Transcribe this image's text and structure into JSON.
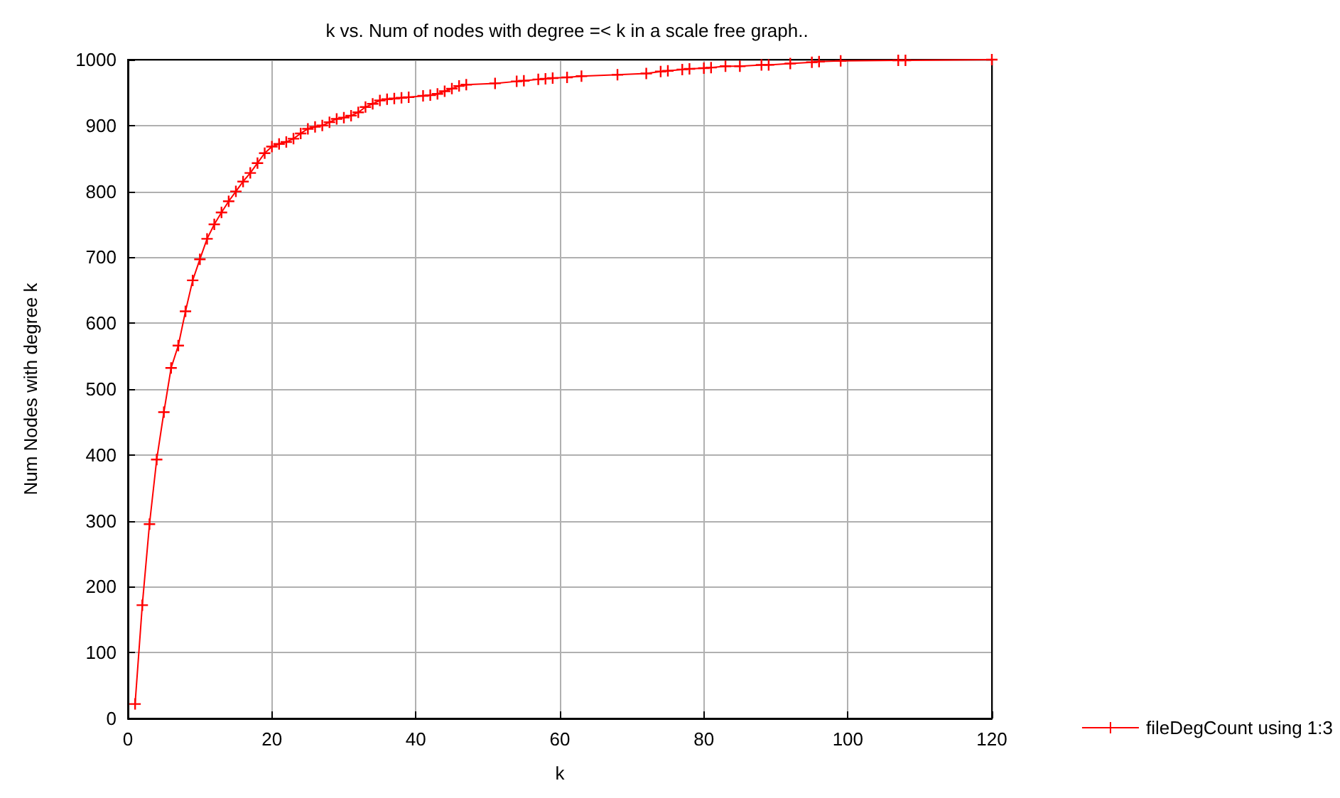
{
  "chart_data": {
    "type": "line",
    "title": "k vs. Num of nodes with degree =< k in a scale free graph..",
    "xlabel": "k",
    "ylabel": "Num Nodes with degree k",
    "series": [
      {
        "name": "fileDegCount using 1:3",
        "color": "#ff0000",
        "x": [
          1,
          2,
          3,
          4,
          5,
          6,
          7,
          8,
          9,
          10,
          11,
          12,
          13,
          14,
          15,
          16,
          17,
          18,
          19,
          20,
          21,
          22,
          23,
          24,
          25,
          26,
          27,
          28,
          29,
          30,
          31,
          32,
          33,
          34,
          35,
          36,
          37,
          38,
          39,
          41,
          42,
          43,
          44,
          45,
          46,
          47,
          51,
          54,
          55,
          57,
          58,
          59,
          61,
          63,
          68,
          72,
          74,
          75,
          77,
          78,
          80,
          81,
          83,
          85,
          88,
          89,
          92,
          95,
          96,
          99,
          107,
          108,
          120
        ],
        "values": [
          22,
          172,
          295,
          393,
          465,
          532,
          566,
          618,
          665,
          697,
          728,
          750,
          768,
          785,
          800,
          815,
          828,
          843,
          858,
          868,
          872,
          875,
          880,
          888,
          895,
          898,
          900,
          905,
          910,
          912,
          915,
          920,
          928,
          933,
          938,
          940,
          941,
          942,
          943,
          945,
          946,
          948,
          952,
          956,
          960,
          962,
          964,
          967,
          968,
          970,
          971,
          972,
          973,
          975,
          977,
          979,
          982,
          983,
          985,
          986,
          987,
          988,
          990,
          990,
          992,
          992,
          994,
          996,
          997,
          998,
          999,
          999,
          1000
        ]
      }
    ],
    "xlim": [
      0,
      120
    ],
    "xticks": [
      0,
      20,
      40,
      60,
      80,
      100,
      120
    ],
    "ylim": [
      0,
      1000
    ],
    "yticks": [
      0,
      100,
      200,
      300,
      400,
      500,
      600,
      700,
      800,
      900,
      1000
    ],
    "grid": true,
    "legend": "bottom right",
    "marker": "cross",
    "line_style": "solid"
  }
}
